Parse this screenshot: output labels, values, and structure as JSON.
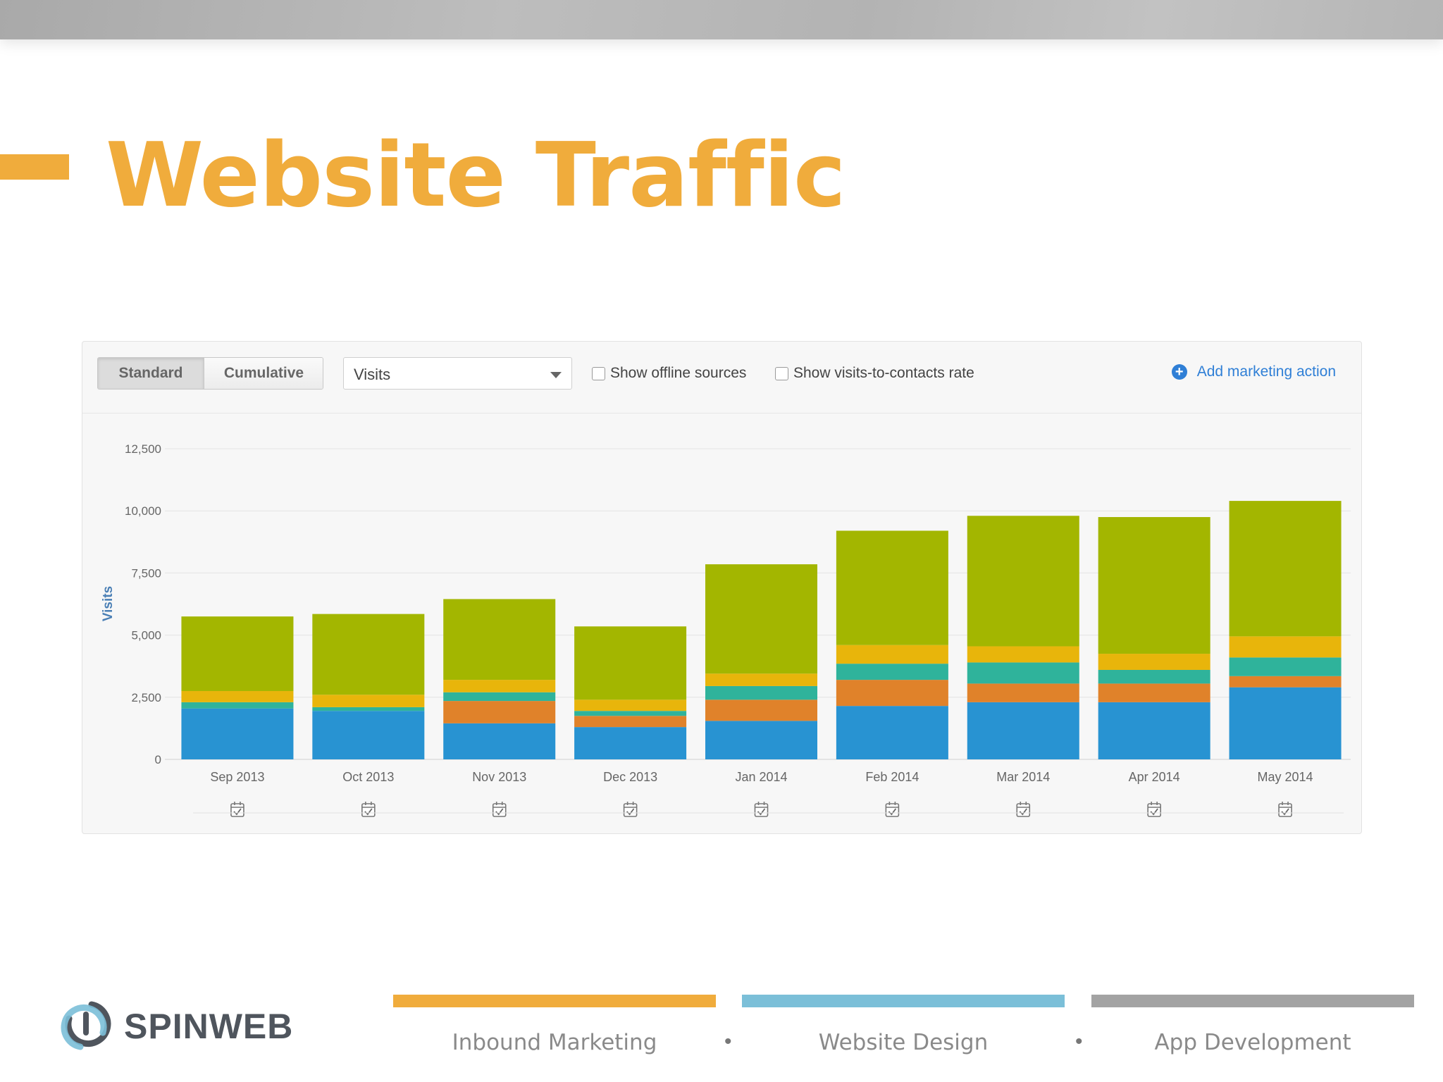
{
  "slide": {
    "title": "Website Traffic"
  },
  "toolbar": {
    "standard_label": "Standard",
    "cumulative_label": "Cumulative",
    "metric_select_value": "Visits",
    "offline_sources_label": "Show offline sources",
    "visits_rate_label": "Show visits-to-contacts rate",
    "add_action_label": "Add marketing action",
    "add_action_icon": "plus-circle-icon"
  },
  "chart_data": {
    "type": "bar",
    "stacked": true,
    "ylabel": "Visits",
    "ylim": [
      0,
      12500
    ],
    "y_ticks": [
      "0",
      "2,500",
      "5,000",
      "7,500",
      "10,000",
      "12,500"
    ],
    "y_tick_values": [
      0,
      2500,
      5000,
      7500,
      10000,
      12500
    ],
    "categories": [
      "Sep 2013",
      "Oct 2013",
      "Nov 2013",
      "Dec 2013",
      "Jan 2014",
      "Feb 2014",
      "Mar 2014",
      "Apr 2014",
      "May 2014"
    ],
    "series": [
      {
        "color": "#2893d2",
        "values": [
          2050,
          1950,
          1450,
          1300,
          1550,
          2150,
          2300,
          2300,
          2900
        ]
      },
      {
        "color": "#e0822a",
        "values": [
          0,
          0,
          900,
          450,
          850,
          1050,
          750,
          750,
          450
        ]
      },
      {
        "color": "#2fb39b",
        "values": [
          250,
          150,
          350,
          200,
          550,
          650,
          850,
          550,
          750
        ]
      },
      {
        "color": "#e8b50b",
        "values": [
          450,
          500,
          500,
          450,
          500,
          750,
          650,
          650,
          850
        ]
      },
      {
        "color": "#a3b600",
        "values": [
          3000,
          3250,
          3250,
          2950,
          4400,
          4600,
          5250,
          5500,
          5450
        ]
      }
    ],
    "grid": true,
    "event_icon": "calendar-check-icon"
  },
  "footer": {
    "logo_text": "SPINWEB",
    "items": [
      {
        "label": "Inbound Marketing",
        "color": "#f0ac3c"
      },
      {
        "label": "Website Design",
        "color": "#7bbfd8"
      },
      {
        "label": "App Development",
        "color": "#a3a3a3"
      }
    ],
    "separator": "•"
  }
}
